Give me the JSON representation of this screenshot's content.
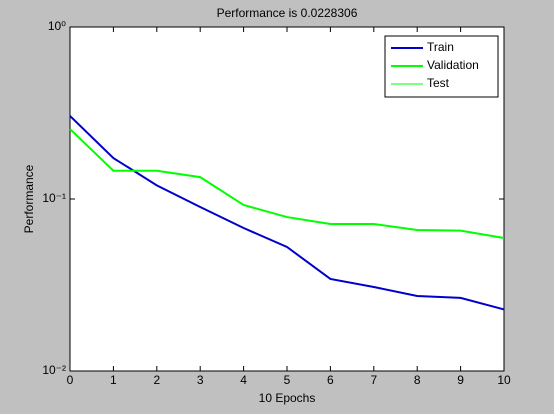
{
  "chart_data": {
    "type": "line",
    "title": "Performance is 0.0228306",
    "x_label": "10 Epochs",
    "y_label": "Performance",
    "log_y": true,
    "x": [
      0,
      1,
      2,
      3,
      4,
      5,
      6,
      7,
      8,
      9,
      10
    ],
    "xlim": [
      0,
      10
    ],
    "xticks": [
      0,
      1,
      2,
      3,
      4,
      5,
      6,
      7,
      8,
      9,
      10
    ],
    "ylim": [
      0.01,
      1
    ],
    "yticks": [
      {
        "value": 0.01,
        "label": "10⁻²"
      },
      {
        "value": 0.1,
        "label": "10⁻¹"
      },
      {
        "value": 1,
        "label": "10⁰"
      }
    ],
    "legend": "upper right",
    "series": [
      {
        "name": "Train",
        "color": "#0000cc",
        "width": 2,
        "values": [
          0.304,
          0.173,
          0.12,
          0.0898,
          0.0678,
          0.0526,
          0.0343,
          0.0308,
          0.0273,
          0.0266,
          0.0228
        ]
      },
      {
        "name": "Validation",
        "color": "#00ff00",
        "width": 2,
        "values": [
          0.255,
          0.146,
          0.146,
          0.134,
          0.0923,
          0.0785,
          0.0716,
          0.0716,
          0.066,
          0.0655,
          0.0593
        ]
      },
      {
        "name": "Test",
        "color": "#00ff00",
        "width": 1,
        "values": [
          null,
          null,
          null,
          null,
          null,
          null,
          null,
          null,
          null,
          null,
          null
        ]
      }
    ]
  }
}
